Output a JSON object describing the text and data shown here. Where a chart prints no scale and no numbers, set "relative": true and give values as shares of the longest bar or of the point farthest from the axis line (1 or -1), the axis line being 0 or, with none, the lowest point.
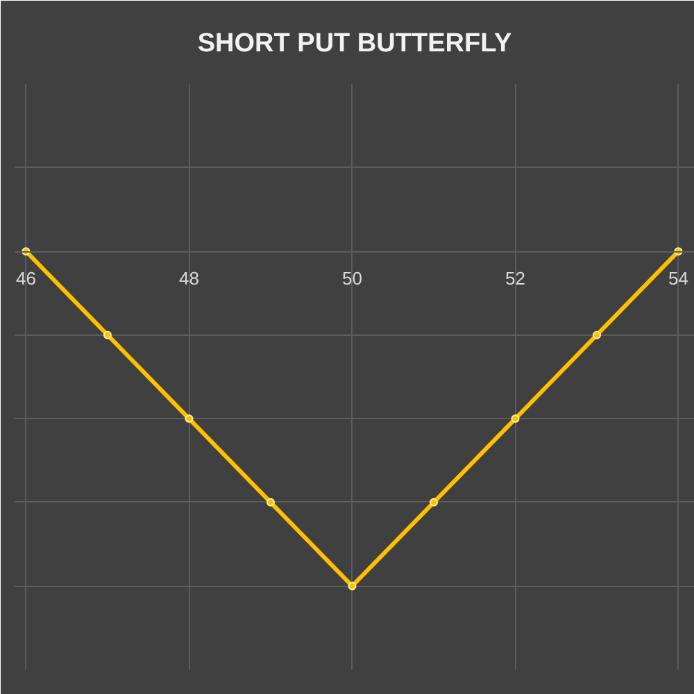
{
  "chart_data": {
    "type": "line",
    "title": "SHORT PUT BUTTERFLY",
    "x": [
      46,
      47,
      48,
      49,
      50,
      51,
      52,
      53,
      54
    ],
    "series": [
      {
        "color": "#ffc000",
        "values": [
          0,
          -0.25,
          -0.5,
          -0.75,
          -1,
          -0.75,
          -0.5,
          -0.25,
          0
        ]
      }
    ],
    "relative": true,
    "xlim": [
      45.86,
      54.2
    ],
    "xticks": [
      46,
      48,
      50,
      52,
      54
    ],
    "grid": true,
    "marker": "circle",
    "line_style": "solid"
  }
}
